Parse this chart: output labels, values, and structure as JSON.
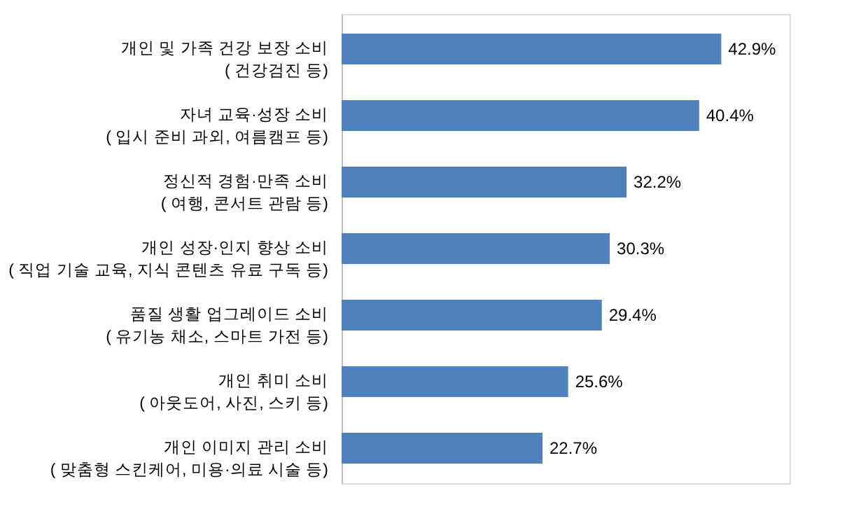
{
  "chart_data": {
    "type": "bar",
    "orientation": "horizontal",
    "categories": [
      "개인 및 가족 건강 보장 소비\n( 건강검진 등)",
      "자녀 교육·성장 소비\n( 입시 준비 과외, 여름캠프 등)",
      "정신적 경험·만족 소비\n( 여행, 콘서트 관람 등)",
      "개인 성장·인지 향상 소비\n( 직업 기술 교육, 지식 콘텐츠 유료 구독 등)",
      "품질 생활 업그레이드 소비\n( 유기농 채소, 스마트 가전 등)",
      "개인 취미 소비\n( 아웃도어, 사진, 스키 등)",
      "개인 이미지 관리 소비\n( 맞춤형 스킨케어, 미용·의료 시술 등)"
    ],
    "values": [
      42.9,
      40.4,
      32.2,
      30.3,
      29.4,
      25.6,
      22.7
    ],
    "value_labels": [
      "42.9%",
      "40.4%",
      "32.2%",
      "30.3%",
      "29.4%",
      "25.6%",
      "22.7%"
    ],
    "color": "#4f81bd",
    "grid": false
  }
}
